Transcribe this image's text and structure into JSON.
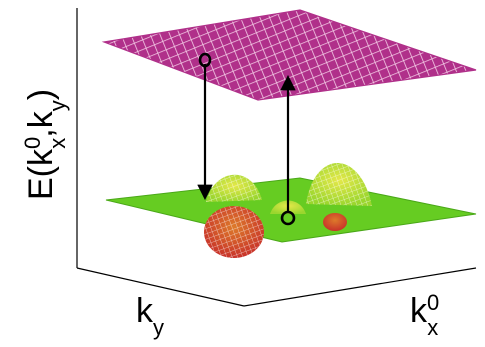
{
  "figure": {
    "z_axis_label": {
      "main": "E(k",
      "sup1": "0",
      "sub1": "x",
      "mid": ",k",
      "sub2": "y",
      "end": ")"
    },
    "y_axis_label": {
      "main": "k",
      "sub": "y"
    },
    "x_axis_label": {
      "main": "k",
      "sup": "0",
      "sub": "x"
    }
  },
  "colors": {
    "upper_surface": "#b0308a",
    "upper_surface_mesh": "#f4cce6",
    "lower_plane": "#66cc22",
    "lower_plane_edge": "#4aa818",
    "bump_green": "#9ad62e",
    "bump_yellow": "#e4e84a",
    "dip_red": "#c8322a",
    "dip_orange": "#dd7a2a",
    "axis_line": "#000000",
    "arrow": "#000000",
    "marker": "#000000"
  },
  "icons": [
    "down-arrow-icon",
    "up-arrow-icon",
    "circle-marker-icon"
  ]
}
